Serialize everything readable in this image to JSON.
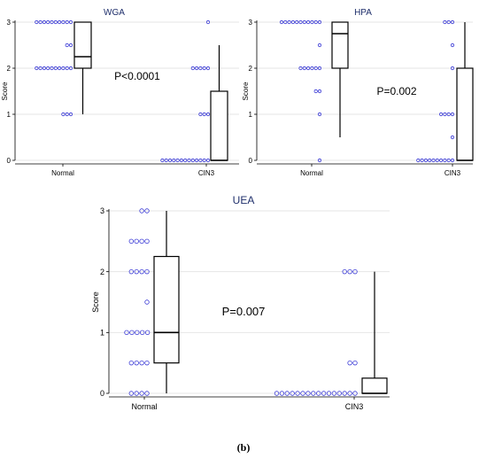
{
  "figure_label": "(b)",
  "colors": {
    "dots": "#3b3bd6",
    "title": "#1f2f6b",
    "grid": "#e6e6e6",
    "axis": "#000000"
  },
  "chart_data": [
    {
      "type": "box-with-dots",
      "title": "WGA",
      "ylabel": "Score",
      "ylim": [
        0,
        3
      ],
      "yticks": [
        "0",
        "1",
        "2",
        "3"
      ],
      "categories": [
        "Normal",
        "CIN3"
      ],
      "annotation": "P<0.0001",
      "grid": true,
      "dots": [
        {
          "y": 3,
          "count": 10
        },
        {
          "y": 2.5,
          "count": 2
        },
        {
          "y": 2,
          "count": 10
        },
        {
          "y": 1,
          "count": 3
        },
        {
          "y": 3,
          "count": 1
        },
        {
          "y": 2,
          "count": 5
        },
        {
          "y": 1,
          "count": 3
        },
        {
          "y": 0,
          "count": 13
        }
      ],
      "boxes": [
        {
          "category": "Normal",
          "min": 1,
          "q1": 2,
          "median": 2.25,
          "q3": 3,
          "max": 3
        },
        {
          "category": "CIN3",
          "min": 0,
          "q1": 0,
          "median": 0,
          "q3": 1.5,
          "max": 2.5
        }
      ]
    },
    {
      "type": "box-with-dots",
      "title": "HPA",
      "ylabel": "Score",
      "ylim": [
        0,
        3
      ],
      "yticks": [
        "0",
        "1",
        "2",
        "3"
      ],
      "categories": [
        "Normal",
        "CIN3"
      ],
      "annotation": "P=0.002",
      "grid": true,
      "dots": [
        {
          "y": 3,
          "count": 11
        },
        {
          "y": 2.5,
          "count": 1
        },
        {
          "y": 2,
          "count": 6
        },
        {
          "y": 1.5,
          "count": 2
        },
        {
          "y": 1,
          "count": 1
        },
        {
          "y": 0,
          "count": 1
        },
        {
          "y": 3,
          "count": 3
        },
        {
          "y": 2.5,
          "count": 1
        },
        {
          "y": 2,
          "count": 1
        },
        {
          "y": 1,
          "count": 4
        },
        {
          "y": 0.5,
          "count": 1
        },
        {
          "y": 0,
          "count": 10
        }
      ],
      "boxes": [
        {
          "category": "Normal",
          "min": 0.5,
          "q1": 2,
          "median": 2.75,
          "q3": 3,
          "max": 3
        },
        {
          "category": "CIN3",
          "min": 0,
          "q1": 0,
          "median": 0,
          "q3": 2,
          "max": 3
        }
      ]
    },
    {
      "type": "box-with-dots",
      "title": "UEA",
      "ylabel": "Score",
      "ylim": [
        0,
        3
      ],
      "yticks": [
        "0",
        "1",
        "2",
        "3"
      ],
      "categories": [
        "Normal",
        "CIN3"
      ],
      "annotation": "P=0.007",
      "grid": true,
      "dots": [
        {
          "y": 3,
          "count": 2
        },
        {
          "y": 2.5,
          "count": 4
        },
        {
          "y": 2,
          "count": 4
        },
        {
          "y": 1.5,
          "count": 1
        },
        {
          "y": 1,
          "count": 5
        },
        {
          "y": 0.5,
          "count": 4
        },
        {
          "y": 0,
          "count": 4
        },
        {
          "y": 2,
          "count": 3
        },
        {
          "y": 0.5,
          "count": 2
        },
        {
          "y": 0,
          "count": 16
        }
      ],
      "boxes": [
        {
          "category": "Normal",
          "min": 0,
          "q1": 0.5,
          "median": 1,
          "q3": 2.25,
          "max": 3
        },
        {
          "category": "CIN3",
          "min": 0,
          "q1": 0,
          "median": 0,
          "q3": 0.25,
          "max": 2
        }
      ]
    }
  ]
}
